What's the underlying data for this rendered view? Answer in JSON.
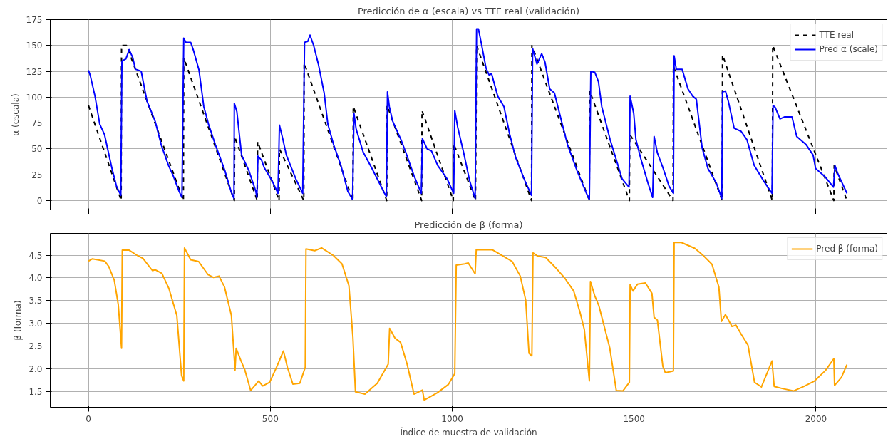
{
  "chart_data": [
    {
      "type": "line",
      "title": "Predicción de α (escala) vs TTE real (validación)",
      "ylabel": "α (escala)",
      "xlim": [
        -105,
        2195
      ],
      "ylim": [
        -9,
        175
      ],
      "xticks": [
        0,
        500,
        1000,
        1500,
        2000
      ],
      "yticks": [
        0,
        25,
        50,
        75,
        100,
        125,
        150,
        175
      ],
      "grid": true,
      "legend": "top right",
      "tick_labels": "y",
      "series": [
        {
          "name": "TTE real",
          "color": "#000000",
          "line_style": "dashed",
          "x": [
            0,
            90,
            91,
            105,
            261,
            262,
            401,
            402,
            464,
            465,
            524,
            525,
            592,
            593,
            727,
            728,
            820,
            821,
            916,
            917,
            1003,
            1004,
            1064,
            1067,
            1218,
            1219,
            1377,
            1378,
            1487,
            1488,
            1607,
            1608,
            1742,
            1743,
            1880,
            1881,
            2049,
            2050,
            2085
          ],
          "values": [
            92,
            0,
            150,
            150,
            0,
            138,
            0,
            62,
            0,
            57,
            0,
            50,
            0,
            133,
            0,
            91,
            0,
            92,
            0,
            87,
            0,
            55,
            0,
            150,
            0,
            150,
            0,
            106,
            0,
            64,
            0,
            130,
            0,
            141,
            0,
            150,
            0,
            34,
            0
          ]
        },
        {
          "name": "Pred α (scale)",
          "color": "#0000ff",
          "line_style": "solid",
          "x": [
            0,
            5,
            18,
            31,
            44,
            64,
            77,
            89,
            92,
            103,
            112,
            122,
            129,
            138,
            145,
            161,
            174,
            184,
            200,
            220,
            233,
            249,
            257,
            262,
            268,
            281,
            288,
            304,
            317,
            330,
            349,
            375,
            392,
            400,
            401,
            408,
            421,
            441,
            460,
            463,
            466,
            476,
            483,
            505,
            521,
            525,
            534,
            544,
            570,
            589,
            594,
            603,
            609,
            619,
            632,
            648,
            658,
            674,
            694,
            713,
            726,
            730,
            736,
            755,
            778,
            814,
            819,
            822,
            827,
            836,
            859,
            872,
            895,
            915,
            918,
            931,
            943,
            960,
            986,
            1004,
            1007,
            1015,
            1031,
            1048,
            1063,
            1067,
            1072,
            1080,
            1093,
            1102,
            1108,
            1125,
            1142,
            1158,
            1175,
            1200,
            1218,
            1221,
            1233,
            1246,
            1255,
            1268,
            1281,
            1301,
            1317,
            1343,
            1369,
            1377,
            1381,
            1392,
            1402,
            1411,
            1434,
            1467,
            1486,
            1489,
            1499,
            1505,
            1518,
            1538,
            1551,
            1555,
            1564,
            1580,
            1596,
            1608,
            1610,
            1616,
            1632,
            1648,
            1661,
            1671,
            1687,
            1703,
            1726,
            1741,
            1743,
            1751,
            1759,
            1775,
            1794,
            1810,
            1830,
            1856,
            1879,
            1882,
            1888,
            1901,
            1914,
            1934,
            1947,
            1973,
            1992,
            1999,
            2025,
            2048,
            2052,
            2060,
            2085
          ],
          "values": [
            126,
            121,
            101,
            74,
            64,
            32,
            14,
            5,
            135,
            137,
            146,
            138,
            127,
            126,
            125,
            96,
            85,
            76,
            54,
            34,
            24,
            9,
            3,
            157,
            153,
            153,
            146,
            126,
            91,
            74,
            54,
            29,
            9,
            2,
            94,
            86,
            44,
            29,
            9,
            3,
            43,
            39,
            32,
            19,
            7,
            73,
            60,
            44,
            21,
            7,
            153,
            154,
            160,
            150,
            132,
            104,
            74,
            54,
            34,
            9,
            1,
            84,
            69,
            47,
            32,
            7,
            4,
            105,
            91,
            77,
            59,
            47,
            24,
            7,
            60,
            50,
            48,
            34,
            21,
            7,
            87,
            71,
            47,
            19,
            2,
            166,
            166,
            152,
            128,
            121,
            123,
            101,
            91,
            64,
            41,
            19,
            5,
            147,
            132,
            142,
            134,
            108,
            104,
            76,
            54,
            29,
            7,
            1,
            125,
            124,
            115,
            91,
            59,
            21,
            13,
            101,
            84,
            59,
            41,
            17,
            3,
            62,
            46,
            31,
            14,
            7,
            140,
            127,
            127,
            108,
            101,
            98,
            51,
            31,
            17,
            2,
            105,
            106,
            96,
            70,
            67,
            59,
            34,
            19,
            7,
            92,
            90,
            79,
            81,
            81,
            62,
            54,
            44,
            31,
            23,
            13,
            34,
            26,
            7
          ]
        }
      ]
    },
    {
      "type": "line",
      "title": "Predicción de β (forma)",
      "xlabel": "Índice de muestra de validación",
      "ylabel": "β (forma)",
      "xlim": [
        -105,
        2195
      ],
      "ylim": [
        1.15,
        4.98
      ],
      "xticks": [
        0,
        500,
        1000,
        1500,
        2000
      ],
      "yticks": [
        1.5,
        {
          "value": 2,
          "label": "2.0"
        },
        2.5,
        {
          "value": 3,
          "label": "3.0"
        },
        3.5,
        {
          "value": 4,
          "label": "4.0"
        },
        4.5
      ],
      "grid": true,
      "legend": "top right",
      "series": [
        {
          "name": "Pred β (forma)",
          "color": "#ffa500",
          "line_style": "solid",
          "x": [
            0,
            11,
            45,
            56,
            71,
            82,
            91,
            93,
            112,
            135,
            150,
            176,
            183,
            202,
            221,
            243,
            256,
            262,
            264,
            281,
            303,
            329,
            344,
            359,
            374,
            393,
            403,
            406,
            419,
            430,
            446,
            468,
            479,
            498,
            517,
            536,
            547,
            562,
            581,
            596,
            598,
            622,
            641,
            674,
            697,
            716,
            727,
            734,
            760,
            794,
            824,
            828,
            843,
            858,
            876,
            895,
            918,
            923,
            959,
            989,
            1007,
            1011,
            1034,
            1044,
            1063,
            1066,
            1088,
            1110,
            1140,
            1165,
            1187,
            1202,
            1211,
            1219,
            1222,
            1235,
            1257,
            1286,
            1308,
            1334,
            1352,
            1363,
            1377,
            1380,
            1392,
            1403,
            1433,
            1451,
            1469,
            1487,
            1489,
            1497,
            1509,
            1531,
            1549,
            1555,
            1564,
            1579,
            1586,
            1608,
            1610,
            1630,
            1667,
            1689,
            1714,
            1733,
            1740,
            1751,
            1769,
            1780,
            1795,
            1813,
            1831,
            1850,
            1879,
            1885,
            1909,
            1938,
            1967,
            1996,
            2026,
            2049,
            2051,
            2070,
            2085
          ],
          "values": [
            4.37,
            4.42,
            4.37,
            4.25,
            3.95,
            3.41,
            2.45,
            4.61,
            4.61,
            4.49,
            4.43,
            4.16,
            4.18,
            4.1,
            3.77,
            3.17,
            1.85,
            1.73,
            4.66,
            4.4,
            4.36,
            4.07,
            4.01,
            4.04,
            3.8,
            3.17,
            1.97,
            2.45,
            2.18,
            1.97,
            1.52,
            1.73,
            1.62,
            1.7,
            2.03,
            2.39,
            2.03,
            1.66,
            1.68,
            2.03,
            4.64,
            4.6,
            4.66,
            4.49,
            4.31,
            3.83,
            2.69,
            1.49,
            1.44,
            1.68,
            2.1,
            2.89,
            2.67,
            2.58,
            2.1,
            1.44,
            1.53,
            1.31,
            1.47,
            1.65,
            1.89,
            4.28,
            4.31,
            4.33,
            4.09,
            4.62,
            4.62,
            4.62,
            4.48,
            4.36,
            4.04,
            3.51,
            2.34,
            2.28,
            4.55,
            4.48,
            4.45,
            4.21,
            4.01,
            3.71,
            3.22,
            2.87,
            1.73,
            3.92,
            3.6,
            3.39,
            2.46,
            1.52,
            1.51,
            1.7,
            3.85,
            3.71,
            3.86,
            3.89,
            3.66,
            3.13,
            3.07,
            2.05,
            1.91,
            1.95,
            4.78,
            4.78,
            4.65,
            4.5,
            4.3,
            3.8,
            3.04,
            3.19,
            2.93,
            2.96,
            2.75,
            2.52,
            1.7,
            1.6,
            2.17,
            1.61,
            1.56,
            1.51,
            1.61,
            1.73,
            1.96,
            2.22,
            1.63,
            1.81,
            2.09
          ]
        }
      ]
    }
  ]
}
